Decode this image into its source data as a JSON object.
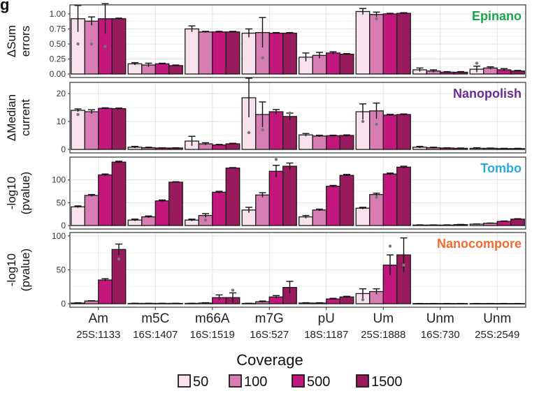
{
  "figure_letter": "g",
  "chart_data": [
    {
      "type": "bar",
      "panel_label": "Epinano",
      "ylabel": [
        "ΔSum",
        "errors"
      ],
      "ylim": [
        0,
        1.15
      ],
      "yticks": [
        "0.00",
        "0.25",
        "0.50",
        "0.75",
        "1.00"
      ],
      "ytick_values": [
        0,
        0.25,
        0.5,
        0.75,
        1.0
      ],
      "categories": [
        "Am 25S:1133",
        "m5C 16S:1407",
        "m66A 16S:1519",
        "m7G 16S:527",
        "pU 18S:1187",
        "Um 25S:1888",
        "Unm 16S:730",
        "Unm 25S:2549"
      ],
      "series": [
        {
          "name": "50",
          "values": [
            0.92,
            0.17,
            0.75,
            0.68,
            0.28,
            1.04,
            0.07,
            0.08
          ],
          "err": [
            0.22,
            0.02,
            0.05,
            0.07,
            0.07,
            0.05,
            0.03,
            0.05
          ],
          "points": [
            0.5,
            null,
            null,
            null,
            null,
            null,
            null,
            0.18
          ]
        },
        {
          "name": "100",
          "values": [
            0.88,
            0.15,
            0.7,
            0.69,
            0.31,
            0.99,
            0.05,
            0.1
          ],
          "err": [
            0.07,
            0.03,
            0.01,
            0.25,
            0.05,
            0.04,
            0.02,
            0.02
          ],
          "points": [
            0.5,
            null,
            null,
            0.27,
            null,
            0.92,
            null,
            null
          ]
        },
        {
          "name": "500",
          "values": [
            0.92,
            0.17,
            0.7,
            0.68,
            0.35,
            1.0,
            0.03,
            0.07
          ],
          "err": [
            0.25,
            0.01,
            0.01,
            0.01,
            0.02,
            0.01,
            0.01,
            0.02
          ],
          "points": [
            0.46,
            null,
            null,
            null,
            null,
            null,
            null,
            null
          ]
        },
        {
          "name": "1500",
          "values": [
            0.92,
            0.14,
            0.7,
            0.68,
            0.33,
            1.01,
            0.03,
            0.05
          ],
          "err": [
            0.01,
            0.01,
            0.01,
            0.01,
            0.01,
            0.01,
            0.01,
            0.01
          ],
          "points": [
            null,
            null,
            null,
            null,
            null,
            null,
            null,
            null
          ]
        }
      ]
    },
    {
      "type": "bar",
      "panel_label": "Nanopolish",
      "ylabel": [
        "ΔMedian",
        "current"
      ],
      "ylim": [
        0,
        24
      ],
      "yticks": [
        "0",
        "10",
        "20"
      ],
      "ytick_values": [
        0,
        10,
        20
      ],
      "categories": [
        "Am 25S:1133",
        "m5C 16S:1407",
        "m66A 16S:1519",
        "m7G 16S:527",
        "pU 18S:1187",
        "Um 25S:1888",
        "Unm 16S:730",
        "Unm 25S:2549"
      ],
      "series": [
        {
          "name": "50",
          "values": [
            14.0,
            0.8,
            3.0,
            18.5,
            5.2,
            13.5,
            0.8,
            0.4
          ],
          "err": [
            0.5,
            0.3,
            1.7,
            7.0,
            0.5,
            2.8,
            0.3,
            0.2
          ],
          "points": [
            12.5,
            null,
            null,
            6.0,
            null,
            10.0,
            null,
            null
          ]
        },
        {
          "name": "100",
          "values": [
            13.5,
            0.6,
            2.0,
            12.5,
            4.8,
            13.8,
            0.6,
            0.4
          ],
          "err": [
            0.7,
            0.2,
            0.4,
            4.5,
            0.3,
            2.8,
            0.2,
            0.1
          ],
          "points": [
            null,
            null,
            null,
            7.0,
            null,
            9.0,
            null,
            null
          ]
        },
        {
          "name": "500",
          "values": [
            14.7,
            0.5,
            1.6,
            13.5,
            4.9,
            12.3,
            0.5,
            0.3
          ],
          "err": [
            0.2,
            0.1,
            0.2,
            0.8,
            0.2,
            0.3,
            0.1,
            0.1
          ],
          "points": [
            null,
            null,
            null,
            null,
            null,
            null,
            null,
            null
          ]
        },
        {
          "name": "1500",
          "values": [
            14.6,
            0.5,
            2.0,
            11.8,
            5.0,
            12.5,
            0.4,
            0.3
          ],
          "err": [
            0.2,
            0.1,
            0.2,
            1.2,
            0.2,
            0.2,
            0.1,
            0.1
          ],
          "points": [
            null,
            null,
            null,
            13.0,
            null,
            null,
            null,
            null
          ]
        }
      ]
    },
    {
      "type": "bar",
      "panel_label": "Tombo",
      "ylabel": [
        "-log10",
        "(pvalue)"
      ],
      "ylim": [
        0,
        150
      ],
      "yticks": [
        "0",
        "50",
        "100"
      ],
      "ytick_values": [
        0,
        50,
        100
      ],
      "categories": [
        "Am 25S:1133",
        "m5C 16S:1407",
        "m66A 16S:1519",
        "m7G 16S:527",
        "pU 18S:1187",
        "Um 25S:1888",
        "Unm 16S:730",
        "Unm 25S:2549"
      ],
      "series": [
        {
          "name": "50",
          "values": [
            41,
            12,
            12,
            34,
            19,
            38,
            1,
            3
          ],
          "err": [
            2,
            2,
            2,
            6,
            3,
            2,
            0.5,
            0.5
          ],
          "points": [
            null,
            null,
            null,
            null,
            null,
            null,
            null,
            null
          ]
        },
        {
          "name": "100",
          "values": [
            66,
            19,
            22,
            67,
            34,
            68,
            1,
            5
          ],
          "err": [
            2,
            2,
            4,
            5,
            2,
            3,
            0.5,
            0.5
          ],
          "points": [
            null,
            null,
            12,
            null,
            null,
            62,
            null,
            null
          ]
        },
        {
          "name": "500",
          "values": [
            111,
            54,
            73,
            119,
            86,
            113,
            1,
            9
          ],
          "err": [
            2,
            2,
            2,
            13,
            2,
            2,
            0.5,
            1
          ],
          "points": [
            null,
            null,
            null,
            145,
            null,
            null,
            null,
            null
          ]
        },
        {
          "name": "1500",
          "values": [
            139,
            95,
            126,
            130,
            110,
            128,
            2,
            14
          ],
          "err": [
            2,
            1,
            1,
            7,
            2,
            2,
            0.5,
            1
          ],
          "points": [
            null,
            null,
            null,
            null,
            null,
            null,
            null,
            null
          ]
        }
      ]
    },
    {
      "type": "bar",
      "panel_label": "Nanocompore",
      "ylabel": [
        "-log10",
        "(pvalue)"
      ],
      "ylim": [
        0,
        105
      ],
      "yticks": [
        "0",
        "50",
        "100"
      ],
      "ytick_values": [
        0,
        50,
        100
      ],
      "categories": [
        "Am 25S:1133",
        "m5C 16S:1407",
        "m66A 16S:1519",
        "m7G 16S:527",
        "pU 18S:1187",
        "Um 25S:1888",
        "Unm 16S:730",
        "Unm 25S:2549"
      ],
      "series": [
        {
          "name": "50",
          "values": [
            1,
            0.5,
            0.5,
            0.5,
            1,
            15,
            0.3,
            0.3
          ],
          "err": [
            0.5,
            0.2,
            0.2,
            0.2,
            0.5,
            7,
            0.1,
            0.1
          ],
          "points": [
            null,
            null,
            null,
            null,
            null,
            6,
            null,
            null
          ]
        },
        {
          "name": "100",
          "values": [
            4,
            0.5,
            1,
            3,
            1,
            18,
            0.3,
            0.3
          ],
          "err": [
            0.5,
            0.2,
            0.5,
            1,
            0.5,
            4,
            0.1,
            0.1
          ],
          "points": [
            null,
            null,
            null,
            null,
            null,
            null,
            null,
            null
          ]
        },
        {
          "name": "500",
          "values": [
            35,
            0.5,
            9,
            10,
            7,
            57,
            0.3,
            0.3
          ],
          "err": [
            2,
            0.2,
            4,
            2,
            1,
            15,
            0.1,
            0.1
          ],
          "points": [
            null,
            null,
            null,
            null,
            null,
            85,
            null,
            null
          ]
        },
        {
          "name": "1500",
          "values": [
            80,
            0.5,
            9,
            24,
            10,
            72,
            0.3,
            0.3
          ],
          "err": [
            8,
            0.2,
            7,
            9,
            1,
            25,
            0.1,
            0.1
          ],
          "points": [
            66,
            null,
            20,
            null,
            null,
            57,
            null,
            null
          ]
        }
      ]
    }
  ],
  "x_labels": [
    {
      "mod": "Am",
      "pos": "25S:1133"
    },
    {
      "mod": "m5C",
      "pos": "16S:1407"
    },
    {
      "mod": "m66A",
      "pos": "16S:1519"
    },
    {
      "mod": "m7G",
      "pos": "16S:527"
    },
    {
      "mod": "pU",
      "pos": "18S:1187"
    },
    {
      "mod": "Um",
      "pos": "25S:1888"
    },
    {
      "mod": "Unm",
      "pos": "16S:730"
    },
    {
      "mod": "Unm",
      "pos": "25S:2549"
    }
  ],
  "legend": {
    "title": "Coverage",
    "items": [
      "50",
      "100",
      "500",
      "1500"
    ],
    "placement": "bottom"
  },
  "colors": {
    "series": [
      "#f6e1ec",
      "#d77db4",
      "#c3177d",
      "#9a1a5e"
    ],
    "panel_labels": [
      "#1aa34a",
      "#6a2d91",
      "#29a8e0",
      "#f26a2e"
    ],
    "grid": "#e2e2e2",
    "border": "#333333"
  }
}
